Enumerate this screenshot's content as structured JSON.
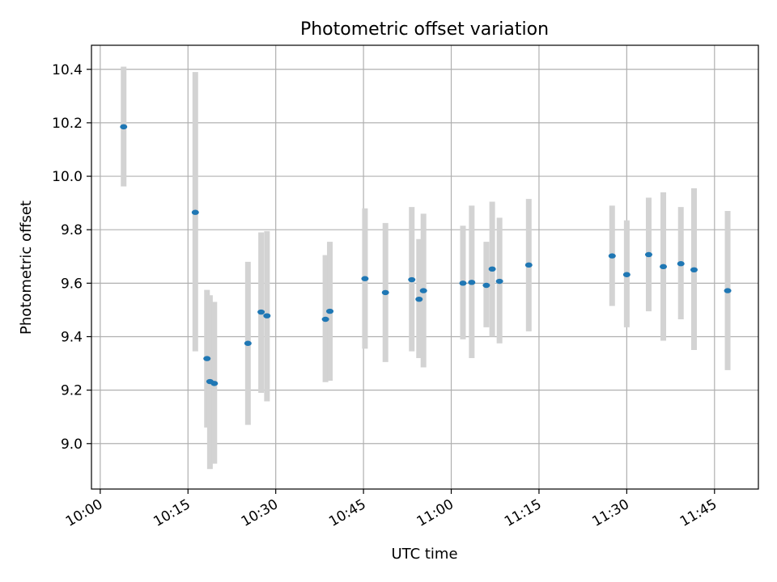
{
  "chart_data": {
    "type": "scatter",
    "title": "Photometric offset variation",
    "xlabel": "UTC time",
    "ylabel": "Photometric offset",
    "x_ticks": [
      "10:00",
      "10:15",
      "10:30",
      "10:45",
      "11:00",
      "11:15",
      "11:30",
      "11:45"
    ],
    "y_ticks": [
      "9.0",
      "9.2",
      "9.4",
      "9.6",
      "9.8",
      "10.0",
      "10.2",
      "10.4"
    ],
    "xlim": [
      "09:58:30",
      "11:52:30"
    ],
    "ylim": [
      8.83,
      10.49
    ],
    "grid": true,
    "legend": "none",
    "colors": {
      "point": "#1f77b4",
      "errorbar": "#d3d3d3"
    },
    "series": [
      {
        "points": [
          {
            "x": "10:04:00",
            "y": 10.185,
            "ylow": 9.962,
            "yhigh": 10.41
          },
          {
            "x": "10:16:15",
            "y": 9.865,
            "ylow": 9.345,
            "yhigh": 10.39
          },
          {
            "x": "10:18:15",
            "y": 9.318,
            "ylow": 9.06,
            "yhigh": 9.575
          },
          {
            "x": "10:18:45",
            "y": 9.232,
            "ylow": 8.905,
            "yhigh": 9.555
          },
          {
            "x": "10:19:30",
            "y": 9.225,
            "ylow": 8.925,
            "yhigh": 9.53
          },
          {
            "x": "10:25:15",
            "y": 9.375,
            "ylow": 9.07,
            "yhigh": 9.68
          },
          {
            "x": "10:27:30",
            "y": 9.492,
            "ylow": 9.19,
            "yhigh": 9.79
          },
          {
            "x": "10:28:30",
            "y": 9.478,
            "ylow": 9.158,
            "yhigh": 9.795
          },
          {
            "x": "10:38:30",
            "y": 9.465,
            "ylow": 9.23,
            "yhigh": 9.705
          },
          {
            "x": "10:39:15",
            "y": 9.495,
            "ylow": 9.235,
            "yhigh": 9.755
          },
          {
            "x": "10:45:15",
            "y": 9.617,
            "ylow": 9.355,
            "yhigh": 9.88
          },
          {
            "x": "10:48:45",
            "y": 9.565,
            "ylow": 9.305,
            "yhigh": 9.825
          },
          {
            "x": "10:53:15",
            "y": 9.613,
            "ylow": 9.345,
            "yhigh": 9.885
          },
          {
            "x": "10:54:30",
            "y": 9.54,
            "ylow": 9.32,
            "yhigh": 9.765
          },
          {
            "x": "10:55:15",
            "y": 9.572,
            "ylow": 9.285,
            "yhigh": 9.86
          },
          {
            "x": "11:02:00",
            "y": 9.6,
            "ylow": 9.39,
            "yhigh": 9.815
          },
          {
            "x": "11:03:30",
            "y": 9.603,
            "ylow": 9.32,
            "yhigh": 9.89
          },
          {
            "x": "11:06:00",
            "y": 9.592,
            "ylow": 9.435,
            "yhigh": 9.755
          },
          {
            "x": "11:07:00",
            "y": 9.653,
            "ylow": 9.4,
            "yhigh": 9.905
          },
          {
            "x": "11:08:15",
            "y": 9.607,
            "ylow": 9.375,
            "yhigh": 9.845
          },
          {
            "x": "11:13:15",
            "y": 9.668,
            "ylow": 9.42,
            "yhigh": 9.915
          },
          {
            "x": "11:27:30",
            "y": 9.702,
            "ylow": 9.515,
            "yhigh": 9.89
          },
          {
            "x": "11:30:00",
            "y": 9.632,
            "ylow": 9.435,
            "yhigh": 9.835
          },
          {
            "x": "11:33:45",
            "y": 9.707,
            "ylow": 9.495,
            "yhigh": 9.92
          },
          {
            "x": "11:36:15",
            "y": 9.662,
            "ylow": 9.385,
            "yhigh": 9.94
          },
          {
            "x": "11:39:15",
            "y": 9.673,
            "ylow": 9.465,
            "yhigh": 9.885
          },
          {
            "x": "11:41:30",
            "y": 9.65,
            "ylow": 9.35,
            "yhigh": 9.955
          },
          {
            "x": "11:47:15",
            "y": 9.572,
            "ylow": 9.275,
            "yhigh": 9.87
          }
        ]
      }
    ]
  }
}
